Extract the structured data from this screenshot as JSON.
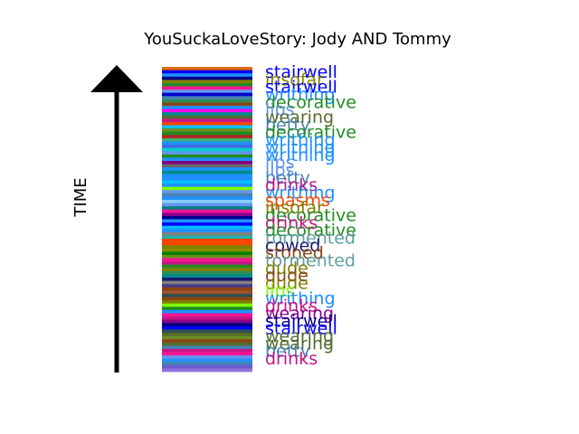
{
  "chart_data": {
    "type": "bar",
    "title": "YouSuckaLoveStory: Jody AND Tommy",
    "ylabel": "TIME",
    "xlabel": "",
    "grid": false,
    "legend": "none",
    "stripe_colors": [
      "#e06a00",
      "#0000ff",
      "#1e90ff",
      "#00008b",
      "#808000",
      "#228b22",
      "#ff1493",
      "#6495ed",
      "#0000cd",
      "#4682b4",
      "#2e8b57",
      "#8b4513",
      "#1e90ff",
      "#ff00ff",
      "#008b8b",
      "#556b2f",
      "#c71585",
      "#ff4500",
      "#00bfff",
      "#6b8e23",
      "#228b22",
      "#b22222",
      "#3cb371",
      "#1e90ff",
      "#4169e1",
      "#00ced1",
      "#6495ed",
      "#228b22",
      "#1e90ff",
      "#800080",
      "#696969",
      "#1e90ff",
      "#008b8b",
      "#1e90ff",
      "#1e90ff",
      "#00bfff",
      "#1e90ff",
      "#7fff00",
      "#6495ed",
      "#4682b4",
      "#1e90ff",
      "#87cefa",
      "#6495ed",
      "#008080",
      "#ff1493",
      "#8b008b",
      "#00008b",
      "#1e90ff",
      "#0000ff",
      "#00bfff",
      "#1e90ff",
      "#808080",
      "#20b2aa",
      "#ff4500",
      "#ff4500",
      "#808000",
      "#8b8b00",
      "#008000",
      "#6b8e23",
      "#ff1493",
      "#c71585",
      "#228b22",
      "#808000",
      "#2e8b57",
      "#008b8b",
      "#191970",
      "#808080",
      "#483d8b",
      "#8b4513",
      "#a0522d",
      "#2f4f4f",
      "#8b4513",
      "#808000",
      "#7fff00",
      "#228b22",
      "#1e90ff",
      "#ff1493",
      "#c71585",
      "#8b008b",
      "#000080",
      "#0000ff",
      "#2f4f4f",
      "#556b2f",
      "#6b8e23",
      "#8b4513",
      "#556b2f",
      "#4682b4",
      "#c71585",
      "#ff1493",
      "#6495ed",
      "#1e90ff",
      "#4682b4",
      "#6a5acd",
      "#9370db"
    ],
    "words": [
      {
        "text": "stairwell",
        "color": "#0000ff"
      },
      {
        "text": "insofar",
        "color": "#808000"
      },
      {
        "text": "stairwell",
        "color": "#0000ff"
      },
      {
        "text": "writhing",
        "color": "#1e90ff"
      },
      {
        "text": "decorative",
        "color": "#228b22"
      },
      {
        "text": "lips",
        "color": "#6495ed"
      },
      {
        "text": "wearing",
        "color": "#556b2f"
      },
      {
        "text": "betty",
        "color": "#4682b4"
      },
      {
        "text": "decorative",
        "color": "#228b22"
      },
      {
        "text": "writhing",
        "color": "#1e90ff"
      },
      {
        "text": "writhing",
        "color": "#1e90ff"
      },
      {
        "text": "writhing",
        "color": "#1e90ff"
      },
      {
        "text": "lips",
        "color": "#6495ed"
      },
      {
        "text": "lips",
        "color": "#6495ed"
      },
      {
        "text": "betty",
        "color": "#4682b4"
      },
      {
        "text": "drinks",
        "color": "#c71585"
      },
      {
        "text": "writhing",
        "color": "#1e90ff"
      },
      {
        "text": "spasms",
        "color": "#ff4500"
      },
      {
        "text": "insofar",
        "color": "#808000"
      },
      {
        "text": "decorative",
        "color": "#228b22"
      },
      {
        "text": "drinks",
        "color": "#c71585"
      },
      {
        "text": "decorative",
        "color": "#228b22"
      },
      {
        "text": "tormented",
        "color": "#5f9ea0"
      },
      {
        "text": "cowed",
        "color": "#191970"
      },
      {
        "text": "stoned",
        "color": "#8b4513"
      },
      {
        "text": "tormented",
        "color": "#5f9ea0"
      },
      {
        "text": "dude",
        "color": "#808000"
      },
      {
        "text": "dude",
        "color": "#8b4513"
      },
      {
        "text": "dude",
        "color": "#808000"
      },
      {
        "text": "lips",
        "color": "#7fff00"
      },
      {
        "text": "writhing",
        "color": "#1e90ff"
      },
      {
        "text": "drinks",
        "color": "#c71585"
      },
      {
        "text": "wearing",
        "color": "#8b008b"
      },
      {
        "text": "stairwell",
        "color": "#00008b"
      },
      {
        "text": "stairwell",
        "color": "#0000ff"
      },
      {
        "text": "wearing",
        "color": "#556b2f"
      },
      {
        "text": "wearing",
        "color": "#556b2f"
      },
      {
        "text": "betty",
        "color": "#4682b4"
      },
      {
        "text": "drinks",
        "color": "#c71585"
      }
    ]
  }
}
